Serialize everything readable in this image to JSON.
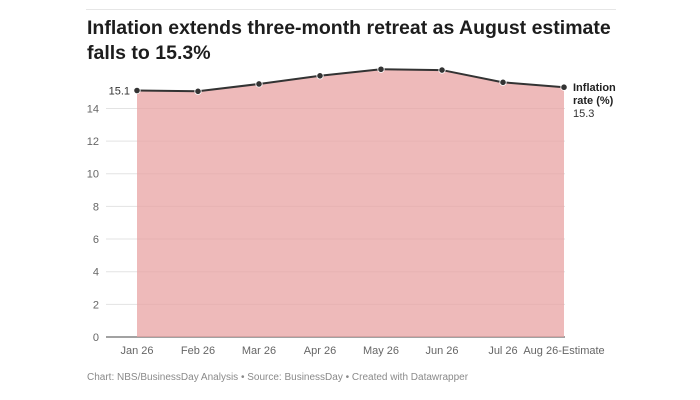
{
  "chart_data": {
    "type": "area",
    "title": "Inflation extends three-month retreat as August estimate falls to 15.3%",
    "categories": [
      "Jan 26",
      "Feb 26",
      "Mar 26",
      "Apr 26",
      "May 26",
      "Jun 26",
      "Jul 26",
      "Aug 26-Estimate"
    ],
    "series": [
      {
        "name": "Inflation rate (%)",
        "values": [
          15.1,
          15.05,
          15.5,
          16.0,
          16.4,
          16.35,
          15.6,
          15.3
        ],
        "color": "#e8a3a3",
        "line_color": "#333333"
      }
    ],
    "first_label": "15.1",
    "last_label": "15.3",
    "yticks": [
      "0",
      "2",
      "4",
      "6",
      "8",
      "10",
      "12",
      "14"
    ],
    "ylim": [
      0,
      16.6
    ],
    "grid": true,
    "footer": "Chart: NBS/BusinessDay Analysis • Source: BusinessDay • Created with Datawrapper"
  }
}
